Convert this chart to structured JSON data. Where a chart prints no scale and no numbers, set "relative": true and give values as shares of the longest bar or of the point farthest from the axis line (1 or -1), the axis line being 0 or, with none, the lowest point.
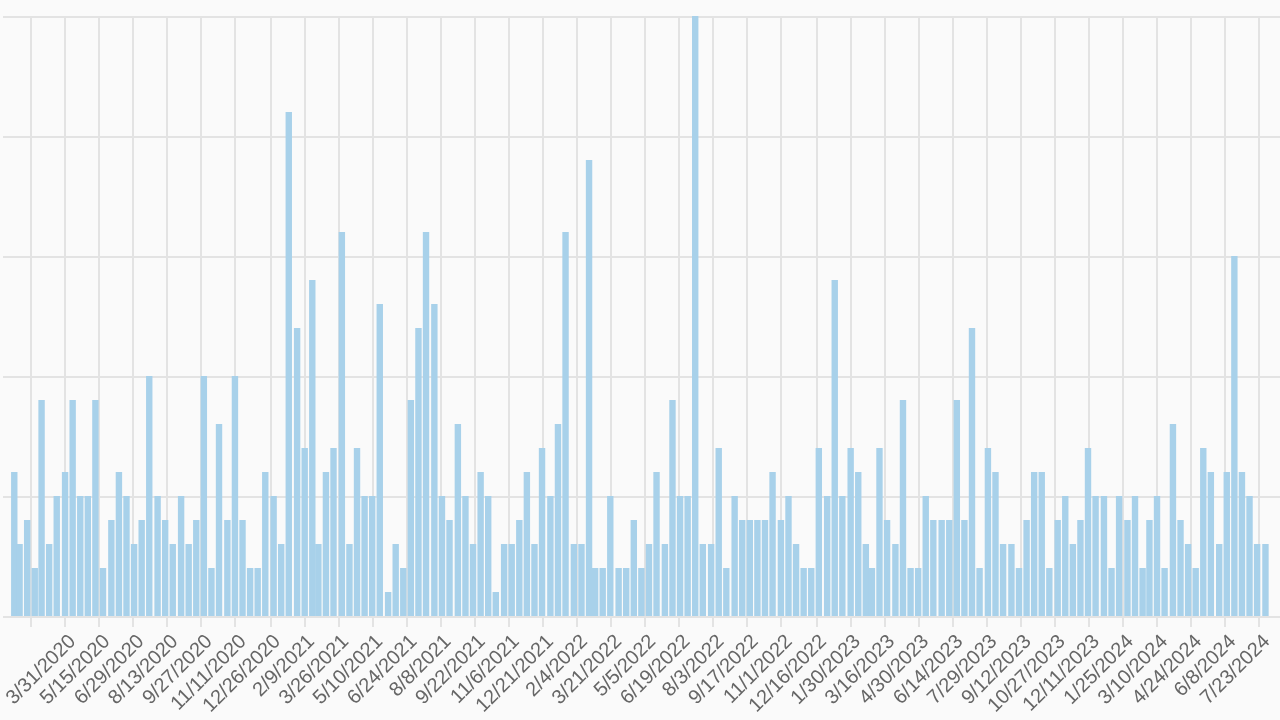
{
  "chart_data": {
    "type": "bar",
    "relative": true,
    "color": "#a8d1ea",
    "grid": true,
    "xlim": [
      "2020-01-22",
      "2024-08-07"
    ],
    "xticks": [
      {
        "value": "2020-02-15",
        "label": null
      },
      {
        "value": "2020-03-31",
        "label": "3/31/2020"
      },
      {
        "value": "2020-05-15",
        "label": "5/15/2020"
      },
      {
        "value": "2020-06-29",
        "label": "6/29/2020"
      },
      {
        "value": "2020-08-13",
        "label": "8/13/2020"
      },
      {
        "value": "2020-09-27",
        "label": "9/27/2020"
      },
      {
        "value": "2020-11-11",
        "label": "11/11/2020"
      },
      {
        "value": "2020-12-26",
        "label": "12/26/2020"
      },
      {
        "value": "2021-02-09",
        "label": "2/9/2021"
      },
      {
        "value": "2021-03-26",
        "label": "3/26/2021"
      },
      {
        "value": "2021-05-10",
        "label": "5/10/2021"
      },
      {
        "value": "2021-06-24",
        "label": "6/24/2021"
      },
      {
        "value": "2021-08-08",
        "label": "8/8/2021"
      },
      {
        "value": "2021-09-22",
        "label": "9/22/2021"
      },
      {
        "value": "2021-11-06",
        "label": "11/6/2021"
      },
      {
        "value": "2021-12-21",
        "label": "12/21/2021"
      },
      {
        "value": "2022-02-04",
        "label": "2/4/2022"
      },
      {
        "value": "2022-03-21",
        "label": "3/21/2022"
      },
      {
        "value": "2022-05-05",
        "label": "5/5/2022"
      },
      {
        "value": "2022-06-19",
        "label": "6/19/2022"
      },
      {
        "value": "2022-08-03",
        "label": "8/3/2022"
      },
      {
        "value": "2022-09-17",
        "label": "9/17/2022"
      },
      {
        "value": "2022-11-01",
        "label": "11/1/2022"
      },
      {
        "value": "2022-12-16",
        "label": "12/16/2022"
      },
      {
        "value": "2023-01-30",
        "label": "1/30/2023"
      },
      {
        "value": "2023-03-16",
        "label": "3/16/2023"
      },
      {
        "value": "2023-04-30",
        "label": "4/30/2023"
      },
      {
        "value": "2023-06-14",
        "label": "6/14/2023"
      },
      {
        "value": "2023-07-29",
        "label": "7/29/2023"
      },
      {
        "value": "2023-09-12",
        "label": "9/12/2023"
      },
      {
        "value": "2023-10-27",
        "label": "10/27/2023"
      },
      {
        "value": "2023-12-11",
        "label": "12/11/2023"
      },
      {
        "value": "2024-01-25",
        "label": "1/25/2024"
      },
      {
        "value": "2024-03-10",
        "label": "3/10/2024"
      },
      {
        "value": "2024-04-24",
        "label": "4/24/2024"
      },
      {
        "value": "2024-06-08",
        "label": "6/8/2024"
      },
      {
        "value": "2024-07-23",
        "label": "7/23/2024"
      }
    ],
    "x": [
      "2020-01-25",
      "2020-02-01",
      "2020-02-11",
      "2020-02-21",
      "2020-03-01",
      "2020-03-11",
      "2020-03-21",
      "2020-04-01",
      "2020-04-11",
      "2020-04-21",
      "2020-05-01",
      "2020-05-11",
      "2020-05-21",
      "2020-06-01",
      "2020-06-11",
      "2020-06-21",
      "2020-07-01",
      "2020-07-11",
      "2020-07-21",
      "2020-08-01",
      "2020-08-11",
      "2020-08-21",
      "2020-09-01",
      "2020-09-11",
      "2020-09-21",
      "2020-10-01",
      "2020-10-11",
      "2020-10-21",
      "2020-11-01",
      "2020-11-11",
      "2020-11-21",
      "2020-12-01",
      "2020-12-11",
      "2020-12-21",
      "2021-01-01",
      "2021-01-11",
      "2021-01-21",
      "2021-02-01",
      "2021-02-11",
      "2021-02-21",
      "2021-03-01",
      "2021-03-11",
      "2021-03-21",
      "2021-04-01",
      "2021-04-11",
      "2021-04-21",
      "2021-05-01",
      "2021-05-11",
      "2021-05-21",
      "2021-06-01",
      "2021-06-11",
      "2021-06-21",
      "2021-07-01",
      "2021-07-11",
      "2021-07-21",
      "2021-08-01",
      "2021-08-11",
      "2021-08-21",
      "2021-09-01",
      "2021-09-11",
      "2021-09-21",
      "2021-10-01",
      "2021-10-11",
      "2021-10-21",
      "2021-11-01",
      "2021-11-11",
      "2021-11-21",
      "2021-12-01",
      "2021-12-11",
      "2021-12-21",
      "2022-01-01",
      "2022-01-11",
      "2022-01-21",
      "2022-02-01",
      "2022-02-11",
      "2022-02-21",
      "2022-03-01",
      "2022-03-11",
      "2022-03-21",
      "2022-04-01",
      "2022-04-11",
      "2022-04-21",
      "2022-05-01",
      "2022-05-11",
      "2022-05-21",
      "2022-06-01",
      "2022-06-11",
      "2022-06-21",
      "2022-07-01",
      "2022-07-11",
      "2022-07-21",
      "2022-08-01",
      "2022-08-11",
      "2022-08-21",
      "2022-09-01",
      "2022-09-11",
      "2022-09-21",
      "2022-10-01",
      "2022-10-11",
      "2022-10-21",
      "2022-11-01",
      "2022-11-11",
      "2022-11-21",
      "2022-12-01",
      "2022-12-11",
      "2022-12-21",
      "2023-01-01",
      "2023-01-11",
      "2023-01-21",
      "2023-02-01",
      "2023-02-11",
      "2023-02-21",
      "2023-03-01",
      "2023-03-11",
      "2023-03-21",
      "2023-04-01",
      "2023-04-11",
      "2023-04-21",
      "2023-05-01",
      "2023-05-11",
      "2023-05-21",
      "2023-06-01",
      "2023-06-11",
      "2023-06-21",
      "2023-07-01",
      "2023-07-11",
      "2023-07-21",
      "2023-08-01",
      "2023-08-11",
      "2023-08-21",
      "2023-09-01",
      "2023-09-11",
      "2023-09-21",
      "2023-10-01",
      "2023-10-11",
      "2023-10-21",
      "2023-11-01",
      "2023-11-11",
      "2023-11-21",
      "2023-12-01",
      "2023-12-11",
      "2023-12-21",
      "2024-01-01",
      "2024-01-11",
      "2024-01-21",
      "2024-02-01",
      "2024-02-11",
      "2024-02-21",
      "2024-03-01",
      "2024-03-11",
      "2024-03-21",
      "2024-04-01",
      "2024-04-11",
      "2024-04-21",
      "2024-05-01",
      "2024-05-11",
      "2024-05-21",
      "2024-06-01",
      "2024-06-11",
      "2024-06-21",
      "2024-07-01",
      "2024-07-11",
      "2024-07-21",
      "2024-08-01"
    ],
    "values": [
      0.24,
      0.12,
      0.16,
      0.08,
      0.36,
      0.12,
      0.2,
      0.24,
      0.36,
      0.2,
      0.2,
      0.36,
      0.08,
      0.16,
      0.24,
      0.2,
      0.12,
      0.16,
      0.4,
      0.2,
      0.16,
      0.12,
      0.2,
      0.12,
      0.16,
      0.4,
      0.08,
      0.32,
      0.16,
      0.4,
      0.16,
      0.08,
      0.08,
      0.24,
      0.2,
      0.12,
      0.84,
      0.48,
      0.28,
      0.56,
      0.12,
      0.24,
      0.28,
      0.64,
      0.12,
      0.28,
      0.2,
      0.2,
      0.52,
      0.04,
      0.12,
      0.08,
      0.36,
      0.48,
      0.64,
      0.52,
      0.2,
      0.16,
      0.32,
      0.2,
      0.12,
      0.24,
      0.2,
      0.04,
      0.12,
      0.12,
      0.16,
      0.24,
      0.12,
      0.28,
      0.2,
      0.32,
      0.64,
      0.12,
      0.12,
      0.76,
      0.08,
      0.08,
      0.2,
      0.08,
      0.08,
      0.16,
      0.08,
      0.12,
      0.24,
      0.12,
      0.36,
      0.2,
      0.2,
      1.0,
      0.12,
      0.12,
      0.28,
      0.08,
      0.2,
      0.16,
      0.16,
      0.16,
      0.16,
      0.24,
      0.16,
      0.2,
      0.12,
      0.08,
      0.08,
      0.28,
      0.2,
      0.56,
      0.2,
      0.28,
      0.24,
      0.12,
      0.08,
      0.28,
      0.16,
      0.12,
      0.36,
      0.08,
      0.08,
      0.2,
      0.16,
      0.16,
      0.16,
      0.36,
      0.16,
      0.48,
      0.08,
      0.28,
      0.24,
      0.12,
      0.12,
      0.08,
      0.16,
      0.24,
      0.24,
      0.08,
      0.16,
      0.2,
      0.12,
      0.16,
      0.28,
      0.2,
      0.2,
      0.08,
      0.2,
      0.16,
      0.2,
      0.08,
      0.16,
      0.2,
      0.08,
      0.32,
      0.16,
      0.12,
      0.08,
      0.28,
      0.24,
      0.12,
      0.24,
      0.6,
      0.24,
      0.2,
      0.12,
      0.12
    ]
  }
}
